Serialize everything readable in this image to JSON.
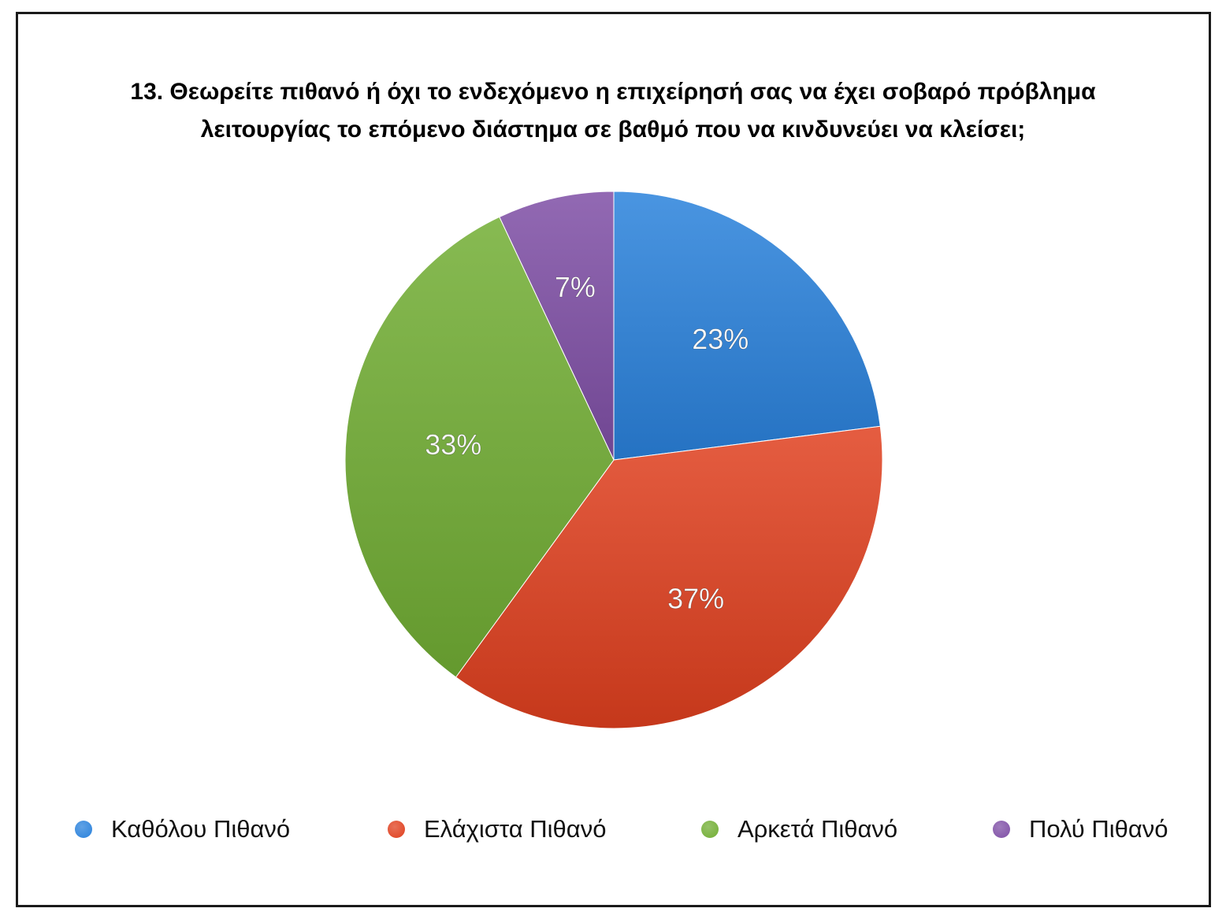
{
  "chart_data": {
    "type": "pie",
    "title_lines": [
      "13. Θεωρείτε πιθανό ή όχι το ενδεχόμενο η επιχείρησή σας να έχει σοβαρό πρόβλημα",
      "λειτουργίας το επόμενο διάστημα σε βαθμό που να κινδυνεύει να κλείσει;"
    ],
    "categories": [
      "Καθόλου Πιθανό",
      "Ελάχιστα Πιθανό",
      "Αρκετά Πιθανό",
      "Πολύ Πιθανό"
    ],
    "values": [
      23,
      37,
      33,
      7
    ],
    "data_labels": [
      "23%",
      "37%",
      "33%",
      "7%"
    ],
    "colors": [
      "#2a82dc",
      "#e0401f",
      "#72ae34",
      "#7f4fa6"
    ],
    "legend_position": "bottom"
  }
}
